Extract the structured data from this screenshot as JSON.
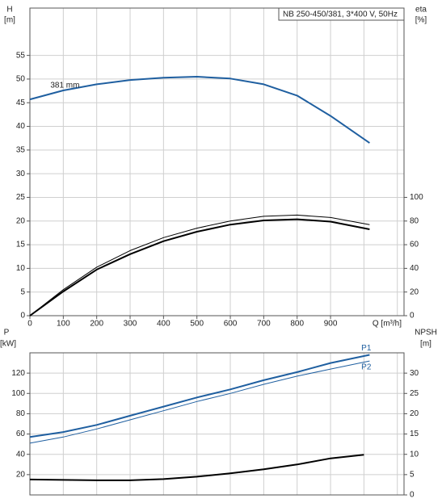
{
  "chart_data": [
    {
      "type": "line",
      "title": "NB 250-450/381, 3*400 V, 50Hz",
      "ylabel": [
        "H",
        "[m]"
      ],
      "y2label": [
        "eta",
        "[%]"
      ],
      "xlabel": "Q [m³/h]",
      "xlim": [
        0,
        1120
      ],
      "xticks": [
        0,
        100,
        200,
        300,
        400,
        500,
        600,
        700,
        800,
        900
      ],
      "xgrid": [
        0,
        100,
        200,
        300,
        400,
        500,
        600,
        700,
        800,
        900,
        1000,
        1100
      ],
      "ylim": [
        0,
        65
      ],
      "yticks": [
        0,
        5,
        10,
        15,
        20,
        25,
        30,
        35,
        40,
        45,
        50,
        55
      ],
      "y2lim": [
        0,
        260
      ],
      "y2ticks": [
        0,
        20,
        40,
        60,
        80,
        100
      ],
      "grid": true,
      "series": [
        {
          "name": "381 mm",
          "color": "#1f5fa0",
          "width": 2,
          "x": [
            0,
            100,
            200,
            300,
            400,
            500,
            600,
            700,
            800,
            900,
            1017
          ],
          "values": [
            45.7,
            47.6,
            48.9,
            49.8,
            50.3,
            50.5,
            50.1,
            48.9,
            46.5,
            42.2,
            36.5
          ]
        },
        {
          "color": "#000000",
          "width": 1,
          "axis": "y2",
          "x": [
            0,
            100,
            200,
            300,
            400,
            500,
            600,
            700,
            800,
            900,
            1017
          ],
          "values": [
            0,
            22,
            41,
            55,
            66,
            74,
            80,
            84,
            85,
            83,
            77
          ]
        },
        {
          "color": "#000000",
          "width": 2,
          "axis": "y2",
          "x": [
            0,
            100,
            200,
            300,
            400,
            500,
            600,
            700,
            800,
            900,
            1017
          ],
          "values": [
            0,
            20.5,
            39,
            52,
            63,
            71,
            77,
            80.5,
            81.5,
            79.5,
            73
          ]
        }
      ]
    },
    {
      "type": "line",
      "ylabel": [
        "P",
        "[kW]"
      ],
      "y2label": [
        "NPSH",
        "[m]"
      ],
      "xlim": [
        0,
        1120
      ],
      "xgrid": [
        0,
        100,
        200,
        300,
        400,
        500,
        600,
        700,
        800,
        900,
        1000,
        1100
      ],
      "ylim": [
        0,
        140
      ],
      "yticks": [
        20,
        40,
        60,
        80,
        100,
        120
      ],
      "y2lim": [
        0,
        35
      ],
      "y2ticks": [
        0,
        5,
        10,
        15,
        20,
        25,
        30
      ],
      "grid": true,
      "series": [
        {
          "name": "P1",
          "color": "#1f5fa0",
          "width": 2,
          "x": [
            0,
            100,
            200,
            300,
            400,
            500,
            600,
            700,
            800,
            900,
            1017
          ],
          "values": [
            57,
            62,
            69,
            78,
            87,
            96,
            104,
            113,
            121,
            130,
            138
          ]
        },
        {
          "name": "P2",
          "color": "#1f5fa0",
          "width": 1,
          "x": [
            0,
            100,
            200,
            300,
            400,
            500,
            600,
            700,
            800,
            900,
            1017
          ],
          "values": [
            51,
            57,
            65,
            74,
            83,
            92,
            100,
            109,
            117,
            124,
            132
          ]
        },
        {
          "color": "#000000",
          "width": 2,
          "axis": "y2",
          "x": [
            0,
            100,
            200,
            300,
            400,
            500,
            600,
            700,
            800,
            900,
            1000
          ],
          "values": [
            3.8,
            3.7,
            3.6,
            3.6,
            3.9,
            4.5,
            5.3,
            6.3,
            7.5,
            9.0,
            9.9
          ]
        }
      ]
    }
  ]
}
